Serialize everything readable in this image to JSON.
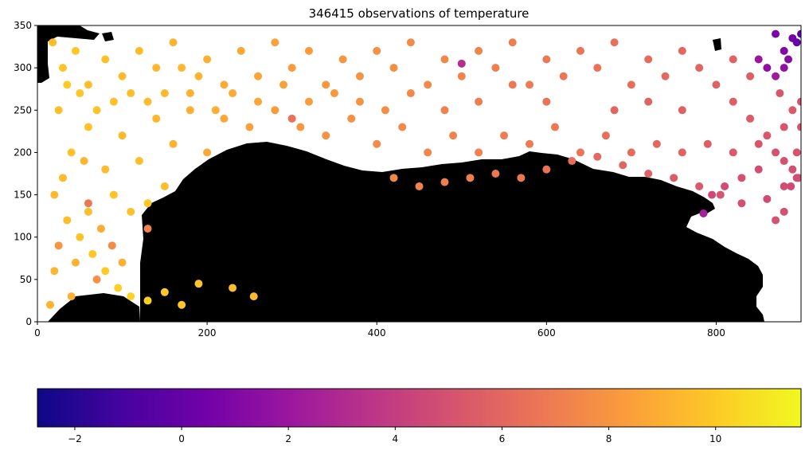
{
  "chart_data": [
    {
      "type": "scatter",
      "title": "346415 observations of temperature",
      "xlabel": "",
      "ylabel": "",
      "xlim": [
        0,
        900
      ],
      "ylim": [
        0,
        350
      ],
      "xticks": [
        0,
        200,
        400,
        600,
        800
      ],
      "yticks": [
        0,
        50,
        100,
        150,
        200,
        250,
        300,
        350
      ],
      "grid": false,
      "background_map": "land mask in black over white sea",
      "colormap": "plasma",
      "points": [
        [
          18,
          330,
          9.5
        ],
        [
          30,
          300,
          9.8
        ],
        [
          45,
          320,
          9.9
        ],
        [
          60,
          280,
          9.6
        ],
        [
          80,
          310,
          9.7
        ],
        [
          100,
          290,
          9.4
        ],
        [
          120,
          320,
          9.5
        ],
        [
          140,
          300,
          9.3
        ],
        [
          160,
          330,
          9.2
        ],
        [
          180,
          270,
          9.1
        ],
        [
          200,
          310,
          9.0
        ],
        [
          220,
          280,
          8.9
        ],
        [
          240,
          320,
          8.8
        ],
        [
          260,
          290,
          8.6
        ],
        [
          280,
          330,
          8.5
        ],
        [
          300,
          300,
          8.3
        ],
        [
          320,
          320,
          8.2
        ],
        [
          340,
          280,
          8.1
        ],
        [
          360,
          310,
          8.0
        ],
        [
          380,
          290,
          7.9
        ],
        [
          400,
          320,
          7.8
        ],
        [
          420,
          300,
          7.7
        ],
        [
          440,
          330,
          7.6
        ],
        [
          460,
          280,
          7.5
        ],
        [
          480,
          310,
          7.4
        ],
        [
          500,
          290,
          7.3
        ],
        [
          520,
          320,
          7.2
        ],
        [
          540,
          300,
          7.1
        ],
        [
          560,
          330,
          7.0
        ],
        [
          580,
          280,
          6.9
        ],
        [
          600,
          310,
          6.8
        ],
        [
          620,
          290,
          6.7
        ],
        [
          640,
          320,
          6.6
        ],
        [
          660,
          300,
          6.5
        ],
        [
          680,
          330,
          6.4
        ],
        [
          700,
          280,
          6.3
        ],
        [
          720,
          310,
          6.2
        ],
        [
          740,
          290,
          6.1
        ],
        [
          760,
          320,
          6.0
        ],
        [
          780,
          300,
          5.9
        ],
        [
          800,
          280,
          5.7
        ],
        [
          820,
          260,
          5.6
        ],
        [
          840,
          240,
          5.5
        ],
        [
          860,
          220,
          5.3
        ],
        [
          880,
          230,
          5.2
        ],
        [
          890,
          250,
          5.4
        ],
        [
          870,
          200,
          5.0
        ],
        [
          850,
          180,
          4.8
        ],
        [
          830,
          170,
          4.9
        ],
        [
          810,
          160,
          4.7
        ],
        [
          25,
          250,
          9.6
        ],
        [
          40,
          200,
          9.7
        ],
        [
          60,
          230,
          9.8
        ],
        [
          80,
          180,
          9.5
        ],
        [
          100,
          220,
          9.4
        ],
        [
          120,
          190,
          9.6
        ],
        [
          140,
          240,
          9.3
        ],
        [
          160,
          210,
          9.2
        ],
        [
          180,
          250,
          9.0
        ],
        [
          200,
          200,
          8.8
        ],
        [
          220,
          240,
          8.7
        ],
        [
          250,
          230,
          8.5
        ],
        [
          280,
          250,
          8.3
        ],
        [
          310,
          230,
          8.1
        ],
        [
          340,
          220,
          7.9
        ],
        [
          370,
          240,
          7.8
        ],
        [
          400,
          210,
          7.6
        ],
        [
          430,
          230,
          7.5
        ],
        [
          460,
          200,
          7.4
        ],
        [
          490,
          220,
          7.3
        ],
        [
          520,
          200,
          7.2
        ],
        [
          550,
          220,
          7.0
        ],
        [
          580,
          210,
          6.9
        ],
        [
          610,
          230,
          6.8
        ],
        [
          640,
          200,
          6.6
        ],
        [
          670,
          220,
          6.4
        ],
        [
          700,
          200,
          6.2
        ],
        [
          730,
          210,
          6.0
        ],
        [
          760,
          200,
          5.8
        ],
        [
          790,
          210,
          5.6
        ],
        [
          820,
          200,
          5.4
        ],
        [
          850,
          210,
          5.2
        ],
        [
          880,
          190,
          5.0
        ],
        [
          895,
          170,
          4.8
        ],
        [
          20,
          150,
          9.4
        ],
        [
          35,
          120,
          9.6
        ],
        [
          50,
          100,
          9.8
        ],
        [
          65,
          80,
          9.9
        ],
        [
          80,
          60,
          10.0
        ],
        [
          95,
          40,
          10.2
        ],
        [
          110,
          30,
          10.3
        ],
        [
          130,
          25,
          10.1
        ],
        [
          150,
          35,
          10.0
        ],
        [
          170,
          20,
          9.9
        ],
        [
          190,
          45,
          9.7
        ],
        [
          230,
          40,
          9.5
        ],
        [
          255,
          30,
          9.4
        ],
        [
          20,
          60,
          9.3
        ],
        [
          15,
          20,
          9.2
        ],
        [
          40,
          30,
          9.0
        ],
        [
          60,
          130,
          9.6
        ],
        [
          90,
          150,
          9.8
        ],
        [
          110,
          130,
          9.7
        ],
        [
          130,
          140,
          9.9
        ],
        [
          150,
          160,
          9.6
        ],
        [
          30,
          170,
          9.5
        ],
        [
          55,
          190,
          9.3
        ],
        [
          45,
          70,
          9.1
        ],
        [
          75,
          110,
          8.9
        ],
        [
          88,
          90,
          7.6
        ],
        [
          70,
          50,
          7.8
        ],
        [
          25,
          90,
          8.0
        ],
        [
          100,
          70,
          9.0
        ],
        [
          420,
          170,
          7.4
        ],
        [
          450,
          160,
          7.2
        ],
        [
          480,
          165,
          7.1
        ],
        [
          510,
          170,
          7.0
        ],
        [
          540,
          175,
          6.8
        ],
        [
          570,
          170,
          6.7
        ],
        [
          600,
          180,
          6.5
        ],
        [
          630,
          190,
          6.3
        ],
        [
          660,
          195,
          6.1
        ],
        [
          690,
          185,
          5.9
        ],
        [
          720,
          175,
          5.7
        ],
        [
          750,
          170,
          5.5
        ],
        [
          780,
          160,
          5.3
        ],
        [
          805,
          150,
          5.1
        ],
        [
          830,
          140,
          4.9
        ],
        [
          860,
          145,
          4.7
        ],
        [
          880,
          160,
          4.8
        ],
        [
          890,
          180,
          4.9
        ],
        [
          895,
          200,
          5.1
        ],
        [
          900,
          230,
          5.0
        ],
        [
          900,
          260,
          4.9
        ],
        [
          875,
          270,
          5.2
        ],
        [
          840,
          290,
          5.6
        ],
        [
          820,
          310,
          5.8
        ],
        [
          795,
          150,
          4.6
        ],
        [
          880,
          320,
          1.0
        ],
        [
          890,
          335,
          0.5
        ],
        [
          870,
          340,
          0.8
        ],
        [
          860,
          300,
          1.5
        ],
        [
          880,
          300,
          1.6
        ],
        [
          850,
          310,
          2.0
        ],
        [
          895,
          330,
          0.0
        ],
        [
          870,
          290,
          2.2
        ],
        [
          885,
          310,
          1.2
        ],
        [
          900,
          340,
          -0.5
        ],
        [
          870,
          120,
          5.0
        ],
        [
          880,
          130,
          4.9
        ],
        [
          888,
          160,
          4.7
        ],
        [
          897,
          170,
          4.8
        ],
        [
          785,
          128,
          2.5
        ],
        [
          500,
          305,
          3.2
        ],
        [
          300,
          240,
          6.5
        ],
        [
          60,
          140,
          6.8
        ],
        [
          130,
          110,
          7.2
        ],
        [
          680,
          250,
          5.9
        ],
        [
          720,
          260,
          5.8
        ],
        [
          760,
          250,
          5.7
        ],
        [
          600,
          260,
          6.5
        ],
        [
          560,
          280,
          6.8
        ],
        [
          520,
          260,
          7.0
        ],
        [
          480,
          250,
          7.2
        ],
        [
          440,
          270,
          7.5
        ],
        [
          410,
          250,
          7.7
        ],
        [
          380,
          260,
          7.9
        ],
        [
          350,
          270,
          8.1
        ],
        [
          320,
          260,
          8.3
        ],
        [
          290,
          280,
          8.5
        ],
        [
          260,
          260,
          8.7
        ],
        [
          230,
          270,
          8.9
        ],
        [
          210,
          250,
          9.0
        ],
        [
          190,
          290,
          9.2
        ],
        [
          170,
          300,
          9.3
        ],
        [
          150,
          270,
          9.4
        ],
        [
          130,
          260,
          9.5
        ],
        [
          110,
          270,
          9.6
        ],
        [
          90,
          260,
          9.7
        ],
        [
          70,
          250,
          9.8
        ],
        [
          50,
          270,
          9.9
        ],
        [
          35,
          280,
          10.0
        ]
      ]
    },
    {
      "type": "colorbar",
      "orientation": "horizontal",
      "colormap": "plasma",
      "vlim": [
        -2.7,
        11.6
      ],
      "ticks": [
        -2,
        0,
        2,
        4,
        6,
        8,
        10
      ],
      "tick_labels": [
        "−2",
        "0",
        "2",
        "4",
        "6",
        "8",
        "10"
      ],
      "colors": [
        "#0d0887",
        "#46039f",
        "#7201a8",
        "#9c179e",
        "#bd3786",
        "#d8576b",
        "#ed7953",
        "#fb9f3a",
        "#fdca26",
        "#f0f921"
      ]
    }
  ]
}
